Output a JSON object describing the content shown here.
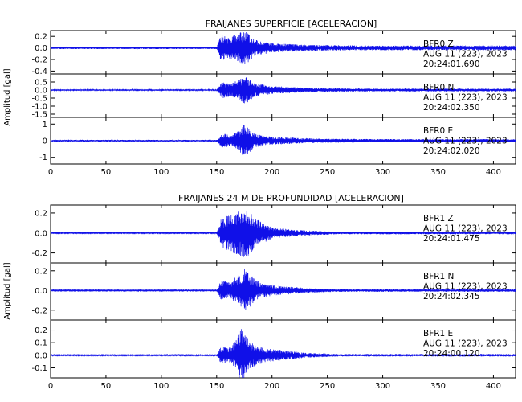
{
  "colors": {
    "trace": "#1010e8",
    "axis": "#000000",
    "background": "#ffffff"
  },
  "chart_data": [
    {
      "type": "line",
      "title": "FRAIJANES SUPERFICIE [ACELERACION]",
      "ylabel": "Amplitud [gal]",
      "xlim": [
        0,
        420
      ],
      "xticks": [
        0,
        50,
        100,
        150,
        200,
        250,
        300,
        350,
        400
      ],
      "xtick_labels": [
        "0",
        "50",
        "100",
        "150",
        "200",
        "250",
        "300",
        "350",
        "400"
      ],
      "grid": false,
      "series": [
        {
          "name": "BFR0 Z",
          "annotation": [
            "BFR0   Z",
            "AUG 11 (223), 2023",
            "20:24:01.690"
          ],
          "ylim": [
            -0.45,
            0.3
          ],
          "yticks": [
            0.2,
            0.0,
            -0.2,
            -0.4
          ],
          "ytick_labels": [
            "0.2",
            "0.0",
            "-0.2",
            "-0.4"
          ],
          "noise_amplitude": 0.02,
          "envelope": [
            [
              150,
              0.0
            ],
            [
              154,
              0.22
            ],
            [
              160,
              0.16
            ],
            [
              170,
              0.24
            ],
            [
              176,
              0.28
            ],
            [
              185,
              0.12
            ],
            [
              200,
              0.06
            ],
            [
              240,
              0.03
            ],
            [
              290,
              0.02
            ]
          ]
        },
        {
          "name": "BFR0 N",
          "annotation": [
            "BFR0   N",
            "AUG 11 (223), 2023",
            "20:24:02.350"
          ],
          "ylim": [
            -1.7,
            1.0
          ],
          "yticks": [
            0.5,
            0.0,
            -0.5,
            -1.0,
            -1.5
          ],
          "ytick_labels": [
            "0.5",
            "0.0",
            "-0.5",
            "-1.0",
            "-1.5"
          ],
          "noise_amplitude": 0.04,
          "envelope": [
            [
              150,
              0.0
            ],
            [
              155,
              0.5
            ],
            [
              162,
              0.35
            ],
            [
              170,
              0.6
            ],
            [
              175,
              0.9
            ],
            [
              185,
              0.4
            ],
            [
              200,
              0.2
            ],
            [
              240,
              0.08
            ],
            [
              290,
              0.05
            ]
          ]
        },
        {
          "name": "BFR0 E",
          "annotation": [
            "BFR0   E",
            "AUG 11 (223), 2023",
            "20:24:02.020"
          ],
          "ylim": [
            -1.4,
            1.4
          ],
          "yticks": [
            1,
            0,
            -1
          ],
          "ytick_labels": [
            "1",
            "0",
            "-1"
          ],
          "noise_amplitude": 0.05,
          "envelope": [
            [
              150,
              0.0
            ],
            [
              155,
              0.4
            ],
            [
              163,
              0.3
            ],
            [
              170,
              0.55
            ],
            [
              175,
              0.95
            ],
            [
              185,
              0.35
            ],
            [
              200,
              0.18
            ],
            [
              240,
              0.08
            ],
            [
              290,
              0.05
            ]
          ]
        }
      ]
    },
    {
      "type": "line",
      "title": "FRAIJANES 24 M DE PROFUNDIDAD [ACELERACION]",
      "ylabel": "Amplitud [gal]",
      "xlim": [
        0,
        420
      ],
      "xticks": [
        0,
        50,
        100,
        150,
        200,
        250,
        300,
        350,
        400
      ],
      "xtick_labels": [
        "0",
        "50",
        "100",
        "150",
        "200",
        "250",
        "300",
        "350",
        "400"
      ],
      "grid": false,
      "series": [
        {
          "name": "BFR1 Z",
          "annotation": [
            "BFR1   Z",
            "AUG 11 (223), 2023",
            "20:24:01.475"
          ],
          "ylim": [
            -0.3,
            0.28
          ],
          "yticks": [
            0.2,
            0.0,
            -0.2
          ],
          "ytick_labels": [
            "0.2",
            "0.0",
            "-0.2"
          ],
          "noise_amplitude": 0.005,
          "envelope": [
            [
              150,
              0.0
            ],
            [
              154,
              0.14
            ],
            [
              162,
              0.18
            ],
            [
              170,
              0.22
            ],
            [
              176,
              0.26
            ],
            [
              185,
              0.14
            ],
            [
              200,
              0.05
            ],
            [
              230,
              0.02
            ],
            [
              260,
              0.008
            ]
          ]
        },
        {
          "name": "BFR1 N",
          "annotation": [
            "BFR1   N",
            "AUG 11 (223), 2023",
            "20:24:02.345"
          ],
          "ylim": [
            -0.3,
            0.28
          ],
          "yticks": [
            0.2,
            0.0,
            -0.2
          ],
          "ytick_labels": [
            "0.2",
            "0.0",
            "-0.2"
          ],
          "noise_amplitude": 0.005,
          "envelope": [
            [
              150,
              0.0
            ],
            [
              154,
              0.1
            ],
            [
              162,
              0.08
            ],
            [
              170,
              0.16
            ],
            [
              176,
              0.22
            ],
            [
              185,
              0.1
            ],
            [
              200,
              0.05
            ],
            [
              230,
              0.02
            ],
            [
              260,
              0.008
            ]
          ]
        },
        {
          "name": "BFR1 E",
          "annotation": [
            "BFR1   E",
            "AUG 11 (223), 2023",
            "20:24:00.120"
          ],
          "ylim": [
            -0.18,
            0.28
          ],
          "yticks": [
            0.2,
            0.1,
            0.0,
            -0.1
          ],
          "ytick_labels": [
            "0.2",
            "0.1",
            "0.0",
            "-0.1"
          ],
          "noise_amplitude": 0.004,
          "envelope": [
            [
              150,
              0.0
            ],
            [
              154,
              0.07
            ],
            [
              162,
              0.06
            ],
            [
              168,
              0.12
            ],
            [
              173,
              0.24
            ],
            [
              180,
              0.1
            ],
            [
              195,
              0.05
            ],
            [
              230,
              0.015
            ],
            [
              260,
              0.006
            ]
          ]
        }
      ]
    }
  ]
}
